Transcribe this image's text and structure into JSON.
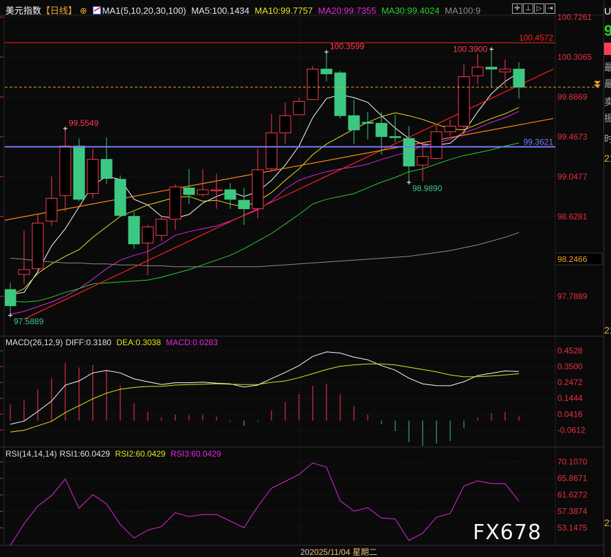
{
  "header": {
    "symbol": "美元指数",
    "period": "【日线】",
    "ma_label": "MA1(5,10,20,30,100)",
    "ma5": "MA5:100.1434",
    "ma10": "MA10:99.7757",
    "ma20": "MA20:99.7355",
    "ma30": "MA30:99.4024",
    "ma100": "MA100:9"
  },
  "toolbar": {
    "icons": [
      "crosshair-icon",
      "zoom-range-icon",
      "play-icon",
      "exit-icon"
    ]
  },
  "macd_legend": {
    "name": "MACD(26,12,9)",
    "diff": "DIFF:0.3180",
    "dea": "DEA:0.3038",
    "macd": "MACD:0.0283"
  },
  "rsi_legend": {
    "name": "RSI(14,14,14)",
    "rsi1": "RSI1:60.0429",
    "rsi2": "RSI2:60.0429",
    "rsi3": "RSI3:60.0429"
  },
  "date_axis": {
    "partial": "20",
    "crosshair_date": "2025/11/04 星期二"
  },
  "watermark": "FX678",
  "side_panel": {
    "code_partial": "U",
    "price_partial": "9",
    "labels": [
      "最",
      "最",
      "卖",
      "振",
      "时"
    ],
    "time_values": [
      "21",
      "21",
      "21"
    ]
  },
  "colors": {
    "up": "#ff3b4e",
    "down": "#3cc882",
    "ma5": "#ffffff",
    "ma10": "#e6e61e",
    "ma20": "#e028e0",
    "ma30": "#28d228",
    "ma100": "#8c8c8c",
    "axis_text": "#e8303f"
  },
  "chart_data": [
    {
      "type": "candlestick",
      "title": "美元指数",
      "ylim": [
        97.45,
        100.78
      ],
      "price_axis_ticks": [
        "100.7261",
        "100.3065",
        "99.8869",
        "99.4673",
        "99.0477",
        "98.6281",
        "97.7889"
      ],
      "price_axis_tick_values": [
        100.7261,
        100.3065,
        99.8869,
        99.4673,
        99.0477,
        98.6281,
        97.7889
      ],
      "highlight_value": "98.2466",
      "grid": true,
      "ohlc": [
        [
          97.86,
          97.93,
          97.5889,
          97.69
        ],
        [
          98.02,
          98.48,
          97.92,
          98.07
        ],
        [
          98.08,
          98.65,
          98.06,
          98.56
        ],
        [
          98.58,
          99.05,
          98.53,
          98.82
        ],
        [
          98.85,
          99.5549,
          98.68,
          99.37
        ],
        [
          99.37,
          99.45,
          98.79,
          98.81
        ],
        [
          98.87,
          99.34,
          98.82,
          99.23
        ],
        [
          99.23,
          99.46,
          98.97,
          99.03
        ],
        [
          99.02,
          99.06,
          98.63,
          98.64
        ],
        [
          98.63,
          98.68,
          98.29,
          98.34
        ],
        [
          98.35,
          98.54,
          98.01,
          98.52
        ],
        [
          98.43,
          98.63,
          98.37,
          98.6
        ],
        [
          98.6,
          98.97,
          98.49,
          98.94
        ],
        [
          98.93,
          99.13,
          98.76,
          98.86
        ],
        [
          98.86,
          99.13,
          98.84,
          98.91
        ],
        [
          98.91,
          99.08,
          98.71,
          98.91
        ],
        [
          98.91,
          98.98,
          98.71,
          98.81
        ],
        [
          98.8,
          98.93,
          98.54,
          98.71
        ],
        [
          98.71,
          99.34,
          98.61,
          99.12
        ],
        [
          99.13,
          99.71,
          99.1,
          99.51
        ],
        [
          99.51,
          99.83,
          99.39,
          99.69
        ],
        [
          99.7,
          99.88,
          99.7,
          99.84
        ],
        [
          99.86,
          100.21,
          99.86,
          100.18
        ],
        [
          100.18,
          100.3599,
          100.05,
          100.13
        ],
        [
          100.14,
          100.16,
          99.66,
          99.69
        ],
        [
          99.69,
          99.86,
          99.39,
          99.54
        ],
        [
          99.62,
          99.73,
          99.44,
          99.61
        ],
        [
          99.61,
          99.73,
          99.28,
          99.47
        ],
        [
          99.47,
          99.7,
          99.41,
          99.465
        ],
        [
          99.45,
          99.58,
          98.989,
          99.16
        ],
        [
          99.17,
          99.4,
          99.0,
          99.26
        ],
        [
          99.24,
          99.59,
          99.23,
          99.52
        ],
        [
          99.52,
          99.65,
          99.48,
          99.58
        ],
        [
          99.58,
          100.23,
          99.48,
          100.1
        ],
        [
          100.11,
          100.34,
          100.02,
          100.2
        ],
        [
          100.2,
          100.39,
          99.99,
          100.18
        ],
        [
          100.15,
          100.28,
          100.0,
          100.18
        ],
        [
          100.18,
          100.25,
          99.87,
          99.99
        ]
      ],
      "series": [
        {
          "name": "MA5",
          "color": "#ffffff",
          "values": [
            97.81,
            97.83,
            98.05,
            98.32,
            98.5,
            98.73,
            98.96,
            99.05,
            99.02,
            98.81,
            98.75,
            98.63,
            98.61,
            98.65,
            98.77,
            98.84,
            98.89,
            98.84,
            98.89,
            99.01,
            99.17,
            99.37,
            99.67,
            99.87,
            99.91,
            99.88,
            99.83,
            99.69,
            99.56,
            99.45,
            99.39,
            99.38,
            99.4,
            99.52,
            99.73,
            99.92,
            100.05,
            100.1434
          ]
        },
        {
          "name": "MA10",
          "color": "#e6e61e",
          "values": [
            97.8,
            97.87,
            98.03,
            98.13,
            98.21,
            98.28,
            98.41,
            98.52,
            98.63,
            98.69,
            98.75,
            98.79,
            98.83,
            98.84,
            98.79,
            98.8,
            98.76,
            98.73,
            98.79,
            98.88,
            99.01,
            99.13,
            99.28,
            99.39,
            99.47,
            99.55,
            99.62,
            99.68,
            99.72,
            99.69,
            99.65,
            99.6,
            99.55,
            99.54,
            99.6,
            99.66,
            99.71,
            99.7757
          ]
        },
        {
          "name": "MA20",
          "color": "#e028e0",
          "values": [
            97.6,
            97.63,
            97.68,
            97.73,
            97.79,
            97.87,
            97.97,
            98.08,
            98.17,
            98.22,
            98.26,
            98.34,
            98.43,
            98.47,
            98.5,
            98.53,
            98.58,
            98.64,
            98.7,
            98.79,
            98.92,
            99.01,
            99.06,
            99.1,
            99.13,
            99.15,
            99.18,
            99.23,
            99.27,
            99.31,
            99.37,
            99.4,
            99.44,
            99.51,
            99.56,
            99.62,
            99.67,
            99.7355
          ]
        },
        {
          "name": "MA30",
          "color": "#28d228",
          "values": [
            97.74,
            97.73,
            97.74,
            97.78,
            97.83,
            97.87,
            97.92,
            97.93,
            97.94,
            97.95,
            97.96,
            97.99,
            98.03,
            98.07,
            98.12,
            98.17,
            98.22,
            98.29,
            98.37,
            98.45,
            98.55,
            98.65,
            98.76,
            98.81,
            98.84,
            98.87,
            98.93,
            98.99,
            99.04,
            99.1,
            99.13,
            99.18,
            99.23,
            99.27,
            99.3,
            99.33,
            99.37,
            99.4024
          ]
        },
        {
          "name": "MA100",
          "color": "#8c8c8c",
          "values": [
            98.19,
            98.18,
            98.16,
            98.15,
            98.14,
            98.14,
            98.13,
            98.13,
            98.12,
            98.12,
            98.11,
            98.11,
            98.1,
            98.1,
            98.1,
            98.1,
            98.1,
            98.1,
            98.1,
            98.11,
            98.12,
            98.13,
            98.14,
            98.15,
            98.16,
            98.17,
            98.18,
            98.19,
            98.2,
            98.21,
            98.23,
            98.25,
            98.27,
            98.3,
            98.33,
            98.37,
            98.41,
            98.46
          ]
        }
      ],
      "annotations": [
        {
          "text": "99.5549",
          "index": 4,
          "price": 99.5549,
          "color": "#ff3b4e",
          "kind": "high"
        },
        {
          "text": "97.5889",
          "index": 0,
          "price": 97.5889,
          "color": "#3cc882",
          "kind": "low"
        },
        {
          "text": "100.3599",
          "index": 23,
          "price": 100.3599,
          "color": "#ff3b4e",
          "kind": "high"
        },
        {
          "text": "100.3900",
          "index": 35,
          "price": 100.39,
          "color": "#ff3b4e",
          "kind": "high"
        },
        {
          "text": "98.9890",
          "index": 29,
          "price": 98.989,
          "color": "#3cc882",
          "kind": "low"
        }
      ],
      "horizontal_lines": [
        {
          "text": "100.4572",
          "price": 100.4572,
          "color": "#ff2020"
        },
        {
          "text": "99.3621",
          "price": 99.3621,
          "color": "#7a7aff"
        }
      ],
      "current_price_line": {
        "price": 99.99,
        "color": "#f0a040"
      },
      "trend_lines": [
        {
          "color": "#ff2020",
          "from": {
            "index": 1,
            "price": 97.55
          },
          "to": {
            "index": 39.5,
            "price": 100.18
          }
        },
        {
          "color": "#ff8a1a",
          "from": {
            "index": -0.75,
            "price": 98.58
          },
          "to": {
            "index": 39.5,
            "price": 99.66
          }
        }
      ]
    },
    {
      "type": "bar+line",
      "title": "MACD(26,12,9)",
      "ylim": [
        -0.17,
        0.48
      ],
      "axis_ticks": [
        "0.4528",
        "0.3500",
        "0.2472",
        "0.1444",
        "0.0416",
        "-0.0612"
      ],
      "axis_tick_values": [
        0.4528,
        0.35,
        0.2472,
        0.1444,
        0.0416,
        -0.0612
      ],
      "histogram": [
        0.104,
        0.13,
        0.202,
        0.275,
        0.374,
        0.343,
        0.362,
        0.326,
        0.228,
        0.112,
        0.057,
        0.021,
        0.039,
        0.036,
        0.036,
        0.026,
        -0.008,
        -0.036,
        -0.008,
        0.067,
        0.121,
        0.171,
        0.225,
        0.239,
        0.171,
        0.094,
        0.039,
        -0.023,
        -0.068,
        -0.14,
        -0.165,
        -0.149,
        -0.133,
        -0.047,
        0.021,
        0.048,
        0.057,
        0.0283
      ],
      "series": [
        {
          "name": "DIFF",
          "color": "#ffffff",
          "values": [
            -0.024,
            -0.003,
            0.059,
            0.126,
            0.23,
            0.257,
            0.309,
            0.325,
            0.309,
            0.27,
            0.252,
            0.234,
            0.245,
            0.245,
            0.249,
            0.242,
            0.238,
            0.217,
            0.23,
            0.272,
            0.312,
            0.356,
            0.416,
            0.445,
            0.438,
            0.411,
            0.394,
            0.356,
            0.327,
            0.275,
            0.238,
            0.227,
            0.226,
            0.252,
            0.292,
            0.307,
            0.322,
            0.318
          ]
        },
        {
          "name": "DEA",
          "color": "#e6e61e",
          "values": [
            -0.074,
            -0.063,
            -0.034,
            -0.005,
            0.052,
            0.096,
            0.141,
            0.178,
            0.203,
            0.215,
            0.221,
            0.222,
            0.23,
            0.233,
            0.236,
            0.239,
            0.236,
            0.233,
            0.234,
            0.248,
            0.257,
            0.278,
            0.304,
            0.331,
            0.352,
            0.361,
            0.367,
            0.367,
            0.361,
            0.346,
            0.331,
            0.316,
            0.296,
            0.284,
            0.285,
            0.289,
            0.296,
            0.3038
          ]
        }
      ]
    },
    {
      "type": "line",
      "title": "RSI(14,14,14)",
      "ylim": [
        48.68,
        73.0
      ],
      "axis_ticks": [
        "70.1070",
        "65.8671",
        "61.6272",
        "57.3874",
        "53.1475"
      ],
      "axis_tick_values": [
        70.107,
        65.8671,
        61.6272,
        57.3874,
        53.1475
      ],
      "series": [
        {
          "name": "RSI3",
          "color": "#e028e0",
          "values": [
            48.63,
            54.21,
            58.75,
            61.45,
            65.69,
            58.22,
            61.7,
            59.33,
            54.03,
            50.57,
            52.57,
            53.5,
            57.04,
            56.05,
            56.58,
            56.58,
            54.92,
            53.22,
            58.63,
            63.34,
            65.11,
            66.88,
            69.83,
            68.77,
            60.11,
            57.46,
            58.34,
            55.69,
            55.45,
            49.92,
            51.81,
            55.87,
            56.86,
            63.93,
            65.23,
            64.53,
            64.53,
            60.0429
          ]
        }
      ]
    }
  ]
}
